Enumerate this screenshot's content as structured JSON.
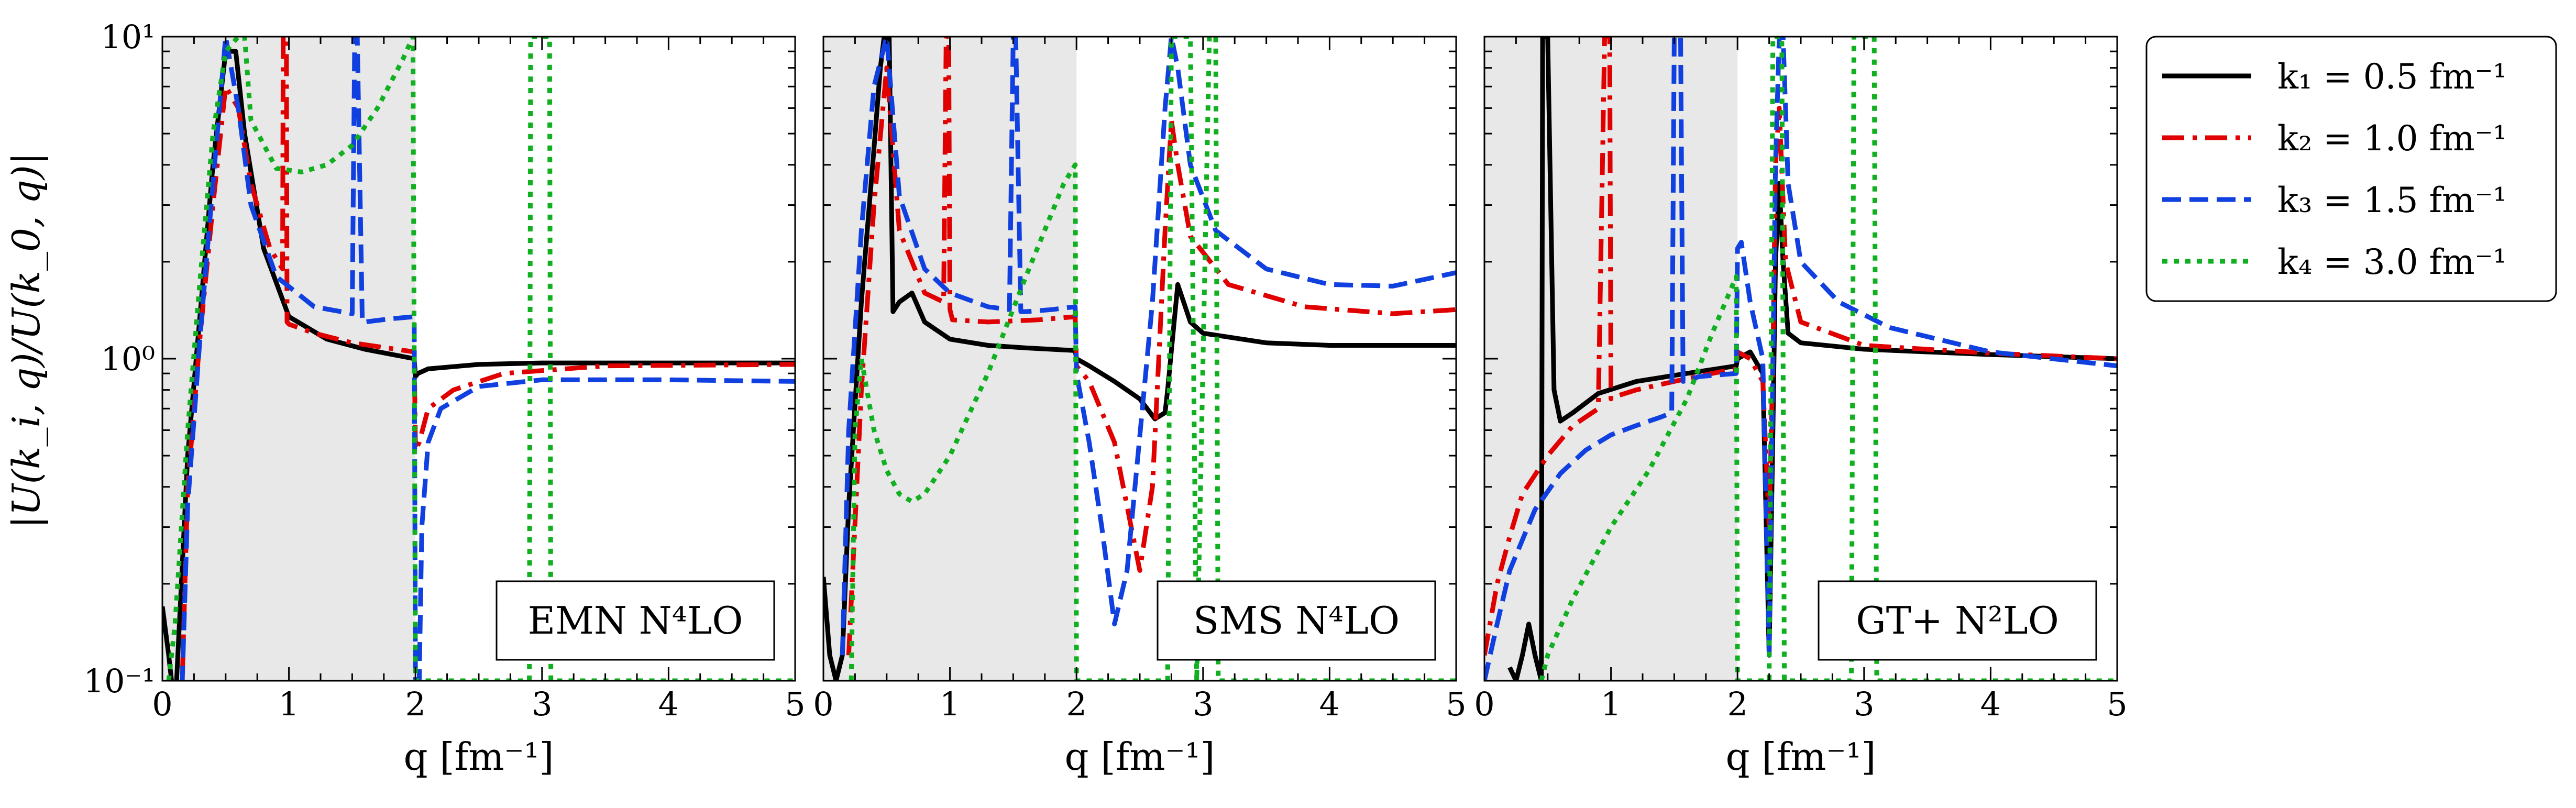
{
  "chart_data": {
    "type": "line",
    "ylabel": "|U(k_i, q)/U(k_0, q)|",
    "xlabel": "q [fm⁻¹]",
    "y_scale": "log",
    "xlim": [
      0,
      5
    ],
    "ylim": [
      0.1,
      10
    ],
    "shaded_region": [
      0,
      2
    ],
    "grid": false,
    "x_ticks": [
      "0",
      "1",
      "2",
      "3",
      "4",
      "5"
    ],
    "y_ticks": [
      "10⁻¹",
      "10⁰",
      "10¹"
    ],
    "legend": {
      "placement": "outside-right",
      "entries": [
        {
          "label": "k₁ = 0.5 fm⁻¹",
          "color": "#000000",
          "dash": "solid"
        },
        {
          "label": "k₂ = 1.0 fm⁻¹",
          "color": "#e00000",
          "dash": "dashdot"
        },
        {
          "label": "k₃ = 1.5 fm⁻¹",
          "color": "#1040e0",
          "dash": "dashed"
        },
        {
          "label": "k₄ = 3.0 fm⁻¹",
          "color": "#10b020",
          "dash": "dotted"
        }
      ]
    },
    "panels": [
      {
        "model": "EMN N⁴LO",
        "series": [
          {
            "x": [
              0,
              0.05,
              0.1,
              0.2,
              0.3,
              0.4,
              0.5,
              0.58,
              0.65,
              0.8,
              1.0,
              1.3,
              1.6,
              1.99,
              2.0,
              2.02,
              2.1,
              2.5,
              3.0,
              4.0,
              5.0
            ],
            "y": [
              0.17,
              0.12,
              0.08,
              0.5,
              1.4,
              4.0,
              9.0,
              9.0,
              5.0,
              2.2,
              1.35,
              1.15,
              1.07,
              1.0,
              0.88,
              0.9,
              0.93,
              0.96,
              0.97,
              0.97,
              0.97
            ]
          },
          {
            "x": [
              0.15,
              0.2,
              0.3,
              0.4,
              0.5,
              0.6,
              0.7,
              0.85,
              0.95,
              0.955,
              0.97,
              0.98,
              0.985,
              1.0,
              1.2,
              1.5,
              1.99,
              2.0,
              2.03,
              2.1,
              2.3,
              2.7,
              3.5,
              5.0
            ],
            "y": [
              0.08,
              0.4,
              1.2,
              3.0,
              7.0,
              6.0,
              3.5,
              2.2,
              1.9,
              10,
              10,
              10,
              1.3,
              1.28,
              1.2,
              1.12,
              1.05,
              0.52,
              0.55,
              0.7,
              0.8,
              0.9,
              0.95,
              0.96
            ]
          },
          {
            "x": [
              0.15,
              0.2,
              0.3,
              0.4,
              0.5,
              0.6,
              0.7,
              0.9,
              1.2,
              1.5,
              1.52,
              1.54,
              1.58,
              1.6,
              1.8,
              1.99,
              2.0,
              2.03,
              2.05,
              2.1,
              2.2,
              2.5,
              3.0,
              4.0,
              5.0
            ],
            "y": [
              0.08,
              0.35,
              1.2,
              3.5,
              10,
              6.0,
              3.0,
              1.8,
              1.45,
              1.38,
              10,
              10,
              1.3,
              1.3,
              1.33,
              1.35,
              0.1,
              0.1,
              0.3,
              0.55,
              0.7,
              0.82,
              0.86,
              0.86,
              0.85
            ]
          },
          {
            "x": [
              0.05,
              0.1,
              0.2,
              0.3,
              0.4,
              0.5,
              0.6,
              0.65,
              0.7,
              0.9,
              1.1,
              1.3,
              1.5,
              1.7,
              1.9,
              1.98,
              2.0,
              2.02,
              2.9,
              2.91,
              2.95,
              3.0,
              3.06,
              3.07,
              5.0
            ],
            "y": [
              0.1,
              0.15,
              0.6,
              1.8,
              5.0,
              9.0,
              10,
              10,
              5.5,
              3.9,
              3.8,
              4.0,
              4.6,
              6.0,
              8.5,
              10,
              0.1,
              0.1,
              0.1,
              10,
              10,
              10,
              10,
              0.1,
              0.1
            ]
          }
        ]
      },
      {
        "model": "SMS N⁴LO",
        "series": [
          {
            "x": [
              0,
              0.05,
              0.1,
              0.15,
              0.2,
              0.3,
              0.4,
              0.45,
              0.48,
              0.5,
              0.52,
              0.55,
              0.6,
              0.7,
              0.8,
              1.0,
              1.3,
              1.6,
              1.99,
              2.0,
              2.1,
              2.3,
              2.5,
              2.62,
              2.7,
              2.72,
              2.8,
              2.9,
              3.0,
              3.5,
              4.0,
              5.0
            ],
            "y": [
              0.21,
              0.12,
              0.1,
              0.12,
              0.35,
              1.5,
              4.5,
              8.0,
              10,
              10,
              10,
              1.4,
              1.5,
              1.6,
              1.3,
              1.15,
              1.1,
              1.08,
              1.06,
              1.0,
              0.95,
              0.85,
              0.75,
              0.65,
              0.68,
              0.8,
              1.7,
              1.3,
              1.2,
              1.12,
              1.1,
              1.1
            ]
          },
          {
            "x": [
              0.2,
              0.3,
              0.4,
              0.5,
              0.6,
              0.8,
              0.95,
              0.97,
              0.99,
              1.0,
              1.02,
              1.3,
              1.7,
              1.99,
              2.0,
              2.1,
              2.3,
              2.5,
              2.6,
              2.7,
              2.75,
              2.8,
              2.9,
              3.2,
              3.8,
              4.5,
              5.0
            ],
            "y": [
              0.12,
              0.8,
              3.0,
              8.0,
              2.5,
              1.6,
              1.5,
              10,
              10,
              1.42,
              1.32,
              1.3,
              1.32,
              1.35,
              0.95,
              0.85,
              0.55,
              0.22,
              0.4,
              2.5,
              5.5,
              4.0,
              2.4,
              1.7,
              1.45,
              1.38,
              1.42
            ]
          },
          {
            "x": [
              0.15,
              0.2,
              0.3,
              0.4,
              0.5,
              0.6,
              0.8,
              1.0,
              1.3,
              1.47,
              1.5,
              1.52,
              1.56,
              1.6,
              1.8,
              1.99,
              2.0,
              2.1,
              2.2,
              2.3,
              2.4,
              2.6,
              2.7,
              2.75,
              2.8,
              2.9,
              3.1,
              3.5,
              4.0,
              4.5,
              5.0
            ],
            "y": [
              0.12,
              0.6,
              2.5,
              7.0,
              10,
              3.2,
              1.9,
              1.6,
              1.45,
              1.42,
              10,
              10,
              1.4,
              1.4,
              1.42,
              1.45,
              0.9,
              0.55,
              0.3,
              0.15,
              0.22,
              1.5,
              6.0,
              10,
              8.0,
              4.0,
              2.5,
              1.9,
              1.7,
              1.68,
              1.85
            ]
          },
          {
            "x": [
              0.22,
              0.25,
              0.3,
              0.4,
              0.5,
              0.6,
              0.7,
              0.8,
              1.0,
              1.3,
              1.6,
              1.9,
              1.99,
              2.0,
              2.02,
              2.05,
              2.1,
              2.3,
              2.5,
              2.7,
              2.72,
              2.75,
              2.85,
              2.9,
              2.95,
              3.05,
              3.1,
              3.12,
              5.0
            ],
            "y": [
              0.1,
              0.6,
              1.0,
              0.6,
              0.45,
              0.38,
              0.36,
              0.38,
              0.5,
              0.9,
              1.8,
              3.5,
              4.0,
              0.1,
              0.1,
              0.1,
              0.1,
              0.1,
              0.1,
              0.1,
              0.1,
              10,
              10,
              10,
              0.1,
              10,
              10,
              0.1,
              0.1
            ]
          }
        ]
      },
      {
        "model": "GT+ N²LO",
        "series": [
          {
            "x": [
              0.2,
              0.25,
              0.3,
              0.35,
              0.4,
              0.45,
              0.46,
              0.48,
              0.5,
              0.55,
              0.6,
              0.7,
              0.9,
              1.2,
              1.6,
              1.99,
              2.0,
              2.1,
              2.2,
              2.25,
              2.28,
              2.3,
              2.33,
              2.36,
              2.4,
              2.5,
              3.0,
              4.0,
              5.0
            ],
            "y": [
              0.11,
              0.1,
              0.12,
              0.15,
              0.12,
              0.1,
              10,
              10,
              10,
              0.8,
              0.64,
              0.68,
              0.78,
              0.85,
              0.9,
              0.95,
              1.0,
              1.05,
              0.9,
              0.12,
              0.6,
              2.0,
              3.5,
              2.0,
              1.2,
              1.12,
              1.07,
              1.03,
              1.0
            ]
          },
          {
            "x": [
              0.0,
              0.1,
              0.2,
              0.3,
              0.5,
              0.7,
              0.9,
              0.95,
              0.97,
              0.99,
              1.0,
              1.02,
              1.2,
              1.5,
              1.8,
              1.99,
              2.0,
              2.1,
              2.2,
              2.25,
              2.28,
              2.3,
              2.33,
              2.38,
              2.5,
              3.0,
              4.0,
              5.0
            ],
            "y": [
              0.12,
              0.2,
              0.28,
              0.38,
              0.5,
              0.62,
              0.7,
              10,
              10,
              10,
              0.75,
              0.76,
              0.8,
              0.85,
              0.9,
              0.93,
              1.05,
              1.0,
              0.85,
              0.3,
              1.0,
              4.0,
              6.0,
              2.0,
              1.3,
              1.1,
              1.04,
              1.0
            ]
          },
          {
            "x": [
              0.0,
              0.1,
              0.2,
              0.4,
              0.6,
              0.8,
              1.0,
              1.2,
              1.4,
              1.48,
              1.5,
              1.52,
              1.55,
              1.57,
              1.7,
              1.99,
              2.0,
              2.03,
              2.1,
              2.2,
              2.25,
              2.3,
              2.33,
              2.36,
              2.4,
              2.5,
              2.8,
              3.2,
              4.0,
              5.0
            ],
            "y": [
              0.1,
              0.15,
              0.22,
              0.34,
              0.44,
              0.52,
              0.58,
              0.62,
              0.66,
              0.68,
              10,
              10,
              10,
              0.85,
              0.88,
              0.9,
              2.2,
              2.3,
              1.5,
              1.0,
              0.12,
              4.0,
              10,
              10,
              3.5,
              2.0,
              1.5,
              1.25,
              1.05,
              0.95
            ]
          },
          {
            "x": [
              0.45,
              0.5,
              0.7,
              1.0,
              1.3,
              1.6,
              1.8,
              1.99,
              2.0,
              2.02,
              2.1,
              2.25,
              2.28,
              2.3,
              2.35,
              2.37,
              2.4,
              2.45,
              2.9,
              2.92,
              2.96,
              3.0,
              3.08,
              3.1,
              5.0
            ],
            "y": [
              0.1,
              0.12,
              0.18,
              0.3,
              0.45,
              0.75,
              1.2,
              1.8,
              0.1,
              0.1,
              0.1,
              0.1,
              10,
              10,
              10,
              0.1,
              0.1,
              0.1,
              0.1,
              10,
              10,
              10,
              10,
              0.1,
              0.1
            ]
          }
        ]
      }
    ]
  }
}
